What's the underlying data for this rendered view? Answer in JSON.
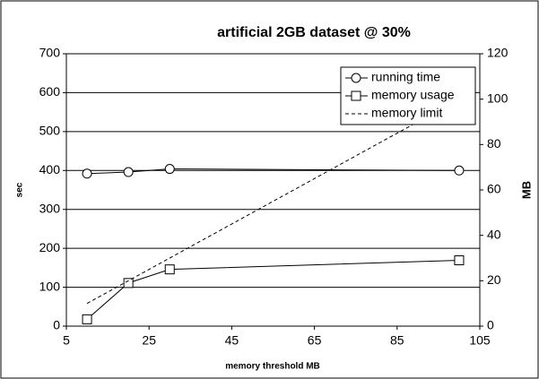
{
  "chart_data": {
    "type": "line",
    "title": "artificial 2GB dataset @ 30%",
    "xlabel": "memory threshold MB",
    "ylabel": "sec",
    "y2label": "MB",
    "x": [
      10,
      20,
      30,
      100
    ],
    "series": [
      {
        "name": "running time",
        "color": "#000000",
        "marker": "circle",
        "dashed": false,
        "axis": "y",
        "values": [
          392,
          396,
          404,
          400
        ]
      },
      {
        "name": "memory usage",
        "color": "#000000",
        "marker": "square",
        "dashed": false,
        "axis": "y2",
        "values": [
          3,
          19,
          25,
          29
        ]
      },
      {
        "name": "memory limit",
        "color": "#000000",
        "marker": null,
        "dashed": true,
        "axis": "y2",
        "values": [
          10,
          20,
          30,
          100
        ]
      }
    ],
    "xlim": [
      5,
      105
    ],
    "xticks": [
      5,
      25,
      45,
      65,
      85,
      105
    ],
    "ylim": [
      0,
      700
    ],
    "yticks": [
      0,
      100,
      200,
      300,
      400,
      500,
      600,
      700
    ],
    "y2lim": [
      0,
      120
    ],
    "y2ticks": [
      0,
      20,
      40,
      60,
      80,
      100,
      120
    ],
    "grid": true,
    "legend": "top-right"
  }
}
